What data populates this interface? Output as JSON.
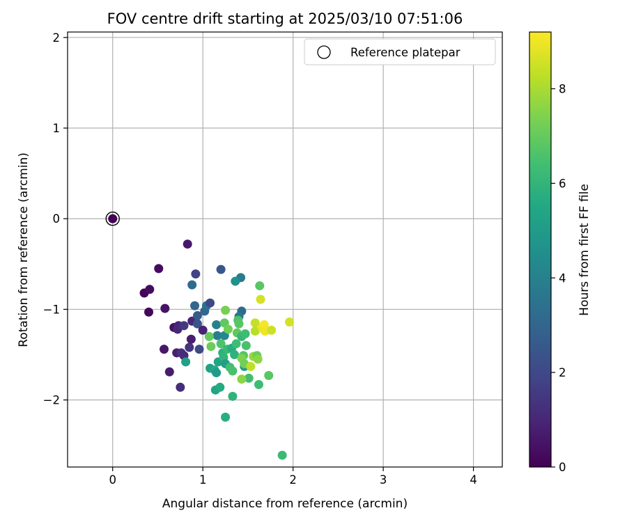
{
  "chart_data": {
    "type": "scatter",
    "title": "FOV centre drift starting at 2025/03/10 07:51:06",
    "xlabel": "Angular distance from reference (arcmin)",
    "ylabel": "Rotation from reference (arcmin)",
    "xlim": [
      -0.5,
      4.32
    ],
    "ylim": [
      -2.74,
      2.06
    ],
    "xticks": [
      0,
      1,
      2,
      3,
      4
    ],
    "yticks": [
      -2,
      -1,
      0,
      1,
      2
    ],
    "grid": true,
    "legend": {
      "position": "top-right",
      "entries": [
        "Reference platepar"
      ]
    },
    "reference_point": {
      "x": 0,
      "y": 0
    },
    "colorbar": {
      "label": "Hours from first FF file",
      "colormap": "viridis",
      "range": [
        0,
        9.2
      ],
      "ticks": [
        0,
        2,
        4,
        6,
        8
      ]
    },
    "series": [
      {
        "points": [
          [
            0.0,
            0.0,
            0.0
          ],
          [
            0.35,
            -0.82,
            0.1
          ],
          [
            0.41,
            -0.78,
            0.3
          ],
          [
            0.4,
            -1.03,
            0.2
          ],
          [
            0.51,
            -0.55,
            0.25
          ],
          [
            0.58,
            -0.99,
            0.5
          ],
          [
            0.57,
            -1.44,
            0.6
          ],
          [
            0.63,
            -1.69,
            0.7
          ],
          [
            0.68,
            -1.2,
            0.4
          ],
          [
            0.71,
            -1.48,
            0.8
          ],
          [
            0.73,
            -1.18,
            0.9
          ],
          [
            0.72,
            -1.22,
            1.0
          ],
          [
            0.75,
            -1.86,
            1.2
          ],
          [
            0.76,
            -1.48,
            1.3
          ],
          [
            0.79,
            -1.18,
            1.5
          ],
          [
            0.79,
            -1.51,
            1.1
          ],
          [
            0.83,
            -0.28,
            0.6
          ],
          [
            0.85,
            -1.42,
            1.4
          ],
          [
            0.87,
            -1.33,
            0.8
          ],
          [
            0.88,
            -1.13,
            1.0
          ],
          [
            0.92,
            -0.61,
            1.8
          ],
          [
            0.88,
            -0.73,
            3.2
          ],
          [
            0.91,
            -0.96,
            3.0
          ],
          [
            0.94,
            -1.07,
            2.6
          ],
          [
            0.94,
            -1.16,
            2.4
          ],
          [
            0.96,
            -1.44,
            2.0
          ],
          [
            1.0,
            -1.23,
            0.9
          ],
          [
            1.02,
            -1.02,
            3.0
          ],
          [
            1.04,
            -0.96,
            3.4
          ],
          [
            1.08,
            -0.93,
            2.0
          ],
          [
            1.2,
            -0.56,
            2.5
          ],
          [
            1.42,
            -0.65,
            3.8
          ],
          [
            1.36,
            -0.69,
            4.6
          ],
          [
            1.43,
            -1.02,
            3.2
          ],
          [
            1.4,
            -1.08,
            3.6
          ],
          [
            1.15,
            -1.17,
            4.0
          ],
          [
            1.16,
            -1.29,
            3.9
          ],
          [
            1.24,
            -1.29,
            4.3
          ],
          [
            0.81,
            -1.58,
            5.2
          ],
          [
            1.07,
            -1.3,
            7.0
          ],
          [
            1.09,
            -1.41,
            7.1
          ],
          [
            1.08,
            -1.65,
            5.2
          ],
          [
            1.13,
            -1.67,
            5.5
          ],
          [
            1.15,
            -1.7,
            5.0
          ],
          [
            1.17,
            -1.58,
            5.3
          ],
          [
            1.14,
            -1.89,
            5.4
          ],
          [
            1.19,
            -1.86,
            5.6
          ],
          [
            1.22,
            -1.48,
            5.8
          ],
          [
            1.2,
            -1.38,
            6.6
          ],
          [
            1.23,
            -1.53,
            6.0
          ],
          [
            1.25,
            -1.6,
            5.1
          ],
          [
            1.27,
            -1.44,
            6.2
          ],
          [
            1.24,
            -1.15,
            6.9
          ],
          [
            1.25,
            -1.01,
            7.3
          ],
          [
            1.28,
            -1.22,
            7.2
          ],
          [
            1.3,
            -1.64,
            6.4
          ],
          [
            1.33,
            -1.68,
            6.5
          ],
          [
            1.32,
            -1.43,
            5.7
          ],
          [
            1.35,
            -1.5,
            5.9
          ],
          [
            1.37,
            -1.38,
            6.3
          ],
          [
            1.38,
            -1.26,
            6.9
          ],
          [
            1.39,
            -1.12,
            6.6
          ],
          [
            1.4,
            -1.16,
            6.8
          ],
          [
            1.33,
            -1.96,
            5.9
          ],
          [
            1.25,
            -2.19,
            5.7
          ],
          [
            1.43,
            -1.3,
            6.1
          ],
          [
            1.45,
            -1.51,
            6.7
          ],
          [
            1.46,
            -1.63,
            5.0
          ],
          [
            1.47,
            -1.27,
            6.3
          ],
          [
            1.48,
            -1.4,
            6.5
          ],
          [
            1.43,
            -1.54,
            7.4
          ],
          [
            1.46,
            -1.6,
            7.2
          ],
          [
            1.51,
            -1.76,
            6.4
          ],
          [
            1.53,
            -1.63,
            8.3
          ],
          [
            1.56,
            -1.52,
            7.8
          ],
          [
            1.43,
            -1.77,
            7.6
          ],
          [
            1.58,
            -1.15,
            8.4
          ],
          [
            1.58,
            -1.24,
            8.2
          ],
          [
            1.6,
            -1.51,
            7.1
          ],
          [
            1.62,
            -1.83,
            6.3
          ],
          [
            1.61,
            -1.55,
            7.6
          ],
          [
            1.63,
            -0.74,
            6.8
          ],
          [
            1.64,
            -0.89,
            8.6
          ],
          [
            1.66,
            -1.21,
            8.9
          ],
          [
            1.68,
            -1.17,
            9.1
          ],
          [
            1.69,
            -1.24,
            9.0
          ],
          [
            1.73,
            -1.73,
            6.8
          ],
          [
            1.76,
            -1.23,
            8.5
          ],
          [
            1.96,
            -1.14,
            8.6
          ],
          [
            1.88,
            -2.61,
            6.2
          ]
        ]
      }
    ]
  }
}
